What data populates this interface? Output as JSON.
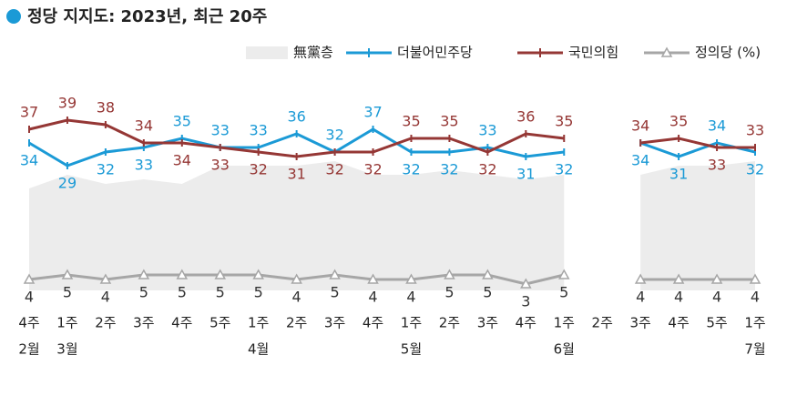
{
  "chart_data": {
    "type": "line",
    "title": "정당 지지도: 2023년, 최근 20주",
    "categories": [
      "4주",
      "1주",
      "2주",
      "3주",
      "4주",
      "5주",
      "1주",
      "2주",
      "3주",
      "4주",
      "1주",
      "2주",
      "3주",
      "4주",
      "1주",
      "2주",
      "3주",
      "4주",
      "5주",
      "1주"
    ],
    "month_labels": [
      "2월",
      "3월",
      null,
      null,
      null,
      null,
      "4월",
      null,
      null,
      null,
      "5월",
      null,
      null,
      null,
      "6월",
      null,
      null,
      null,
      null,
      "7월"
    ],
    "ylim": [
      0,
      45
    ],
    "series": [
      {
        "name": "無黨층",
        "kind": "area",
        "color": "#ececec",
        "values": [
          24,
          27,
          25,
          26,
          25,
          29,
          29,
          29,
          30,
          27,
          27,
          28,
          27,
          26,
          27,
          null,
          27,
          29,
          29,
          30
        ]
      },
      {
        "name": "더불어민주당",
        "kind": "line",
        "color": "#1b9ad6",
        "values": [
          34,
          29,
          32,
          33,
          35,
          33,
          33,
          36,
          32,
          37,
          32,
          32,
          33,
          31,
          32,
          null,
          34,
          31,
          34,
          32
        ]
      },
      {
        "name": "국민의힘",
        "kind": "line",
        "color": "#953735",
        "values": [
          37,
          39,
          38,
          34,
          34,
          33,
          32,
          31,
          32,
          32,
          35,
          35,
          32,
          36,
          35,
          null,
          34,
          35,
          33,
          33
        ]
      },
      {
        "name": "정의당 (%)",
        "kind": "triangle",
        "color": "#a6a6a6",
        "values": [
          4,
          5,
          4,
          5,
          5,
          5,
          5,
          4,
          5,
          4,
          4,
          5,
          5,
          3,
          5,
          null,
          4,
          4,
          4,
          4
        ]
      }
    ]
  }
}
